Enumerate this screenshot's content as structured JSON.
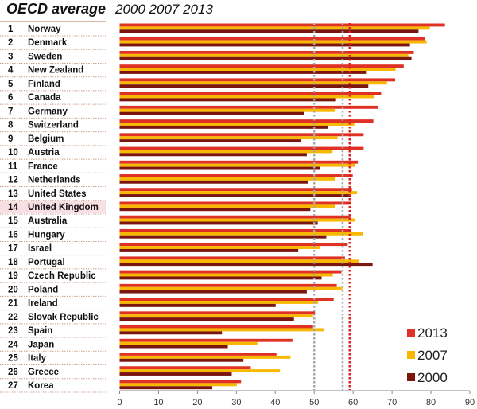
{
  "chart_data": {
    "type": "bar",
    "orientation": "horizontal",
    "title": "OECD average",
    "subtitle": "2000 2007 2013",
    "ranks": [
      1,
      2,
      3,
      4,
      5,
      6,
      7,
      8,
      9,
      10,
      11,
      12,
      13,
      14,
      15,
      16,
      17,
      18,
      19,
      20,
      21,
      22,
      23,
      24,
      25,
      26,
      27
    ],
    "categories": [
      "Norway",
      "Denmark",
      "Sweden",
      "New Zealand",
      "Finland",
      "Canada",
      "Germany",
      "Switzerland",
      "Belgium",
      "Austria",
      "France",
      "Netherlands",
      "United States",
      "United Kingdom",
      "Australia",
      "Hungary",
      "Israel",
      "Portugal",
      "Czech Republic",
      "Poland",
      "Ireland",
      "Slovak Republic",
      "Spain",
      "Japan",
      "Italy",
      "Greece",
      "Korea"
    ],
    "highlighted_category": "United Kingdom",
    "series": [
      {
        "name": "2013",
        "color": "#e03224",
        "values": [
          83.6,
          78.4,
          75.6,
          73.0,
          70.8,
          67.2,
          66.5,
          65.2,
          62.7,
          62.7,
          61.2,
          59.9,
          59.7,
          59.5,
          59.3,
          59.4,
          58.6,
          57.9,
          57.0,
          55.8,
          55.0,
          50.2,
          49.7,
          44.4,
          40.3,
          33.7,
          31.2
        ]
      },
      {
        "name": "2007",
        "color": "#f9b800",
        "values": [
          79.7,
          78.9,
          74.2,
          70.9,
          68.7,
          65.3,
          55.5,
          60.3,
          56.0,
          54.7,
          60.5,
          55.4,
          61.0,
          55.3,
          60.4,
          62.5,
          51.4,
          61.5,
          54.8,
          57.2,
          51.0,
          49.7,
          52.4,
          35.4,
          43.9,
          41.2,
          30.1
        ]
      },
      {
        "name": "2000",
        "color": "#7a1510",
        "values": [
          76.8,
          74.6,
          75.0,
          63.5,
          63.9,
          55.6,
          47.4,
          53.5,
          46.7,
          48.1,
          51.6,
          48.4,
          59.4,
          49.0,
          50.9,
          53.1,
          45.9,
          65.0,
          51.9,
          48.1,
          40.1,
          44.8,
          26.3,
          27.8,
          31.8,
          28.8,
          23.8
        ]
      }
    ],
    "oecd_average_lines": [
      {
        "series": "2000",
        "value": 50.0,
        "color": "#a8a8a8",
        "style": "dotted"
      },
      {
        "series": "2007",
        "value": 57.3,
        "color": "#a8a8a8",
        "style": "dotted"
      },
      {
        "series": "2013",
        "value": 59.1,
        "color": "#e02020",
        "style": "dotted"
      }
    ],
    "xlim": [
      0,
      90
    ],
    "xticks": [
      "0",
      "10",
      "20",
      "30",
      "40",
      "50",
      "60",
      "70",
      "80",
      "90"
    ],
    "grid": false,
    "legend_position": "bottom-right",
    "highlight_color": "#f8dfe3"
  }
}
